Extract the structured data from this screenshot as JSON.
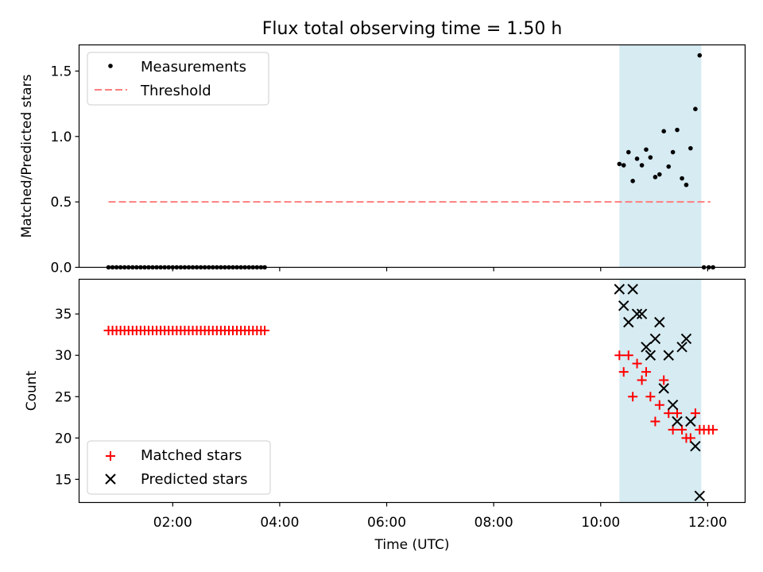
{
  "title": "Flux total observing time = 1.50 h",
  "chart_data": [
    {
      "type": "scatter",
      "ylabel": "Matched/Predicted stars",
      "xlim_hours": [
        0.25,
        12.7
      ],
      "ylim": [
        0,
        1.7
      ],
      "yticks": [
        {
          "v": 0.0,
          "label": "0.0"
        },
        {
          "v": 0.5,
          "label": "0.5"
        },
        {
          "v": 1.0,
          "label": "1.0"
        },
        {
          "v": 1.5,
          "label": "1.5"
        }
      ],
      "highlight_span_hours": [
        10.35,
        11.88
      ],
      "threshold": {
        "name": "Threshold",
        "value": 0.5,
        "x_hours": [
          0.8,
          12.05
        ],
        "color": "#ff7f7f"
      },
      "measurements": {
        "name": "Measurements",
        "color": "#000000",
        "x_hours": [
          0.8,
          0.875,
          0.95,
          1.025,
          1.1,
          1.175,
          1.25,
          1.325,
          1.4,
          1.475,
          1.55,
          1.625,
          1.7,
          1.775,
          1.85,
          1.925,
          2.0,
          2.075,
          2.15,
          2.225,
          2.3,
          2.375,
          2.45,
          2.525,
          2.6,
          2.675,
          2.75,
          2.825,
          2.9,
          2.975,
          3.05,
          3.125,
          3.2,
          3.275,
          3.35,
          3.425,
          3.5,
          3.575,
          3.65,
          3.72,
          10.35,
          10.43,
          10.52,
          10.6,
          10.68,
          10.77,
          10.85,
          10.93,
          11.02,
          11.1,
          11.18,
          11.27,
          11.35,
          11.43,
          11.52,
          11.6,
          11.68,
          11.77,
          11.85,
          11.93,
          12.02,
          12.1
        ],
        "y": [
          0,
          0,
          0,
          0,
          0,
          0,
          0,
          0,
          0,
          0,
          0,
          0,
          0,
          0,
          0,
          0,
          0,
          0,
          0,
          0,
          0,
          0,
          0,
          0,
          0,
          0,
          0,
          0,
          0,
          0,
          0,
          0,
          0,
          0,
          0,
          0,
          0,
          0,
          0,
          0,
          0.79,
          0.78,
          0.88,
          0.66,
          0.83,
          0.78,
          0.9,
          0.84,
          0.69,
          0.71,
          1.04,
          0.77,
          0.88,
          1.05,
          0.68,
          0.63,
          0.91,
          1.21,
          1.62,
          0,
          0,
          0
        ]
      }
    },
    {
      "type": "scatter",
      "xlabel": "Time (UTC)",
      "ylabel": "Count",
      "xlim_hours": [
        0.25,
        12.7
      ],
      "ylim": [
        12.2,
        39.2
      ],
      "yticks": [
        {
          "v": 15,
          "label": "15"
        },
        {
          "v": 20,
          "label": "20"
        },
        {
          "v": 25,
          "label": "25"
        },
        {
          "v": 30,
          "label": "30"
        },
        {
          "v": 35,
          "label": "35"
        }
      ],
      "xticks": [
        {
          "v": 2,
          "label": "02:00"
        },
        {
          "v": 4,
          "label": "04:00"
        },
        {
          "v": 6,
          "label": "06:00"
        },
        {
          "v": 8,
          "label": "08:00"
        },
        {
          "v": 10,
          "label": "10:00"
        },
        {
          "v": 12,
          "label": "12:00"
        }
      ],
      "highlight_span_hours": [
        10.35,
        11.88
      ],
      "series": [
        {
          "name": "Matched stars",
          "color": "#ff0000",
          "marker": "plus",
          "x_hours": [
            0.8,
            0.875,
            0.95,
            1.025,
            1.1,
            1.175,
            1.25,
            1.325,
            1.4,
            1.475,
            1.55,
            1.625,
            1.7,
            1.775,
            1.85,
            1.925,
            2.0,
            2.075,
            2.15,
            2.225,
            2.3,
            2.375,
            2.45,
            2.525,
            2.6,
            2.675,
            2.75,
            2.825,
            2.9,
            2.975,
            3.05,
            3.125,
            3.2,
            3.275,
            3.35,
            3.425,
            3.5,
            3.575,
            3.65,
            3.72,
            10.35,
            10.43,
            10.52,
            10.6,
            10.68,
            10.77,
            10.85,
            10.93,
            11.02,
            11.1,
            11.18,
            11.27,
            11.35,
            11.43,
            11.52,
            11.6,
            11.68,
            11.77,
            11.85,
            11.93,
            12.02,
            12.1
          ],
          "y": [
            33,
            33,
            33,
            33,
            33,
            33,
            33,
            33,
            33,
            33,
            33,
            33,
            33,
            33,
            33,
            33,
            33,
            33,
            33,
            33,
            33,
            33,
            33,
            33,
            33,
            33,
            33,
            33,
            33,
            33,
            33,
            33,
            33,
            33,
            33,
            33,
            33,
            33,
            33,
            33,
            30,
            28,
            30,
            25,
            29,
            27,
            28,
            25,
            22,
            24,
            27,
            23,
            21,
            23,
            21,
            20,
            20,
            23,
            21,
            21,
            21,
            21
          ]
        },
        {
          "name": "Predicted stars",
          "color": "#000000",
          "marker": "x",
          "x_hours": [
            10.35,
            10.43,
            10.52,
            10.6,
            10.68,
            10.77,
            10.85,
            10.93,
            11.02,
            11.1,
            11.18,
            11.27,
            11.35,
            11.43,
            11.52,
            11.6,
            11.68,
            11.77,
            11.85
          ],
          "y": [
            38,
            36,
            34,
            38,
            35,
            35,
            31,
            30,
            32,
            34,
            26,
            30,
            24,
            22,
            31,
            32,
            22,
            19,
            13
          ]
        }
      ]
    }
  ]
}
